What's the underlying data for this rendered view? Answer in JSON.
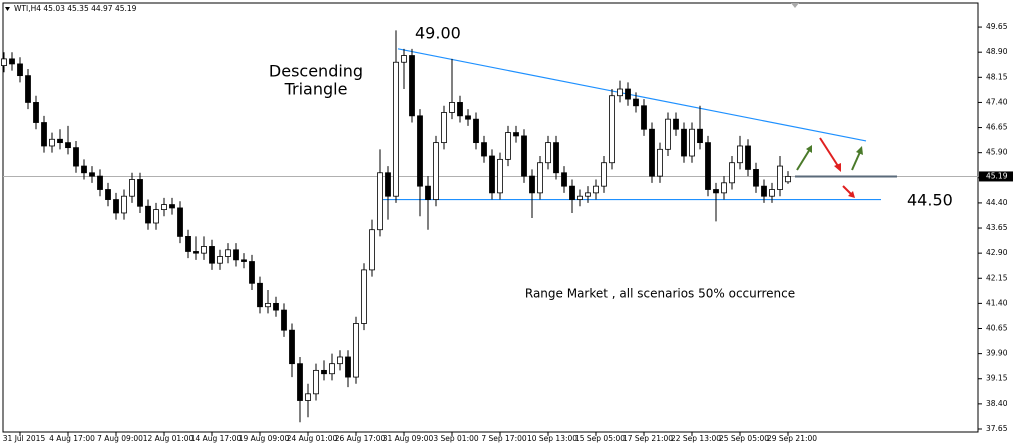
{
  "chart_data": {
    "type": "candlestick",
    "header": "WTI,H4 45.03 45.35 44.97 45.19",
    "annotations": {
      "pattern": [
        "Descending",
        "Triangle"
      ],
      "top_level": "49.00",
      "bottom_level": "44.50",
      "note": "Range Market , all scenarios 50% occurrence"
    },
    "trendlines": [
      {
        "color": "#1e90ff",
        "values": [
          49.0,
          46.25
        ]
      },
      {
        "color": "#1e90ff",
        "values": [
          44.5,
          44.5
        ]
      }
    ],
    "categories": [
      null,
      null,
      "31 Jul 2015",
      null,
      null,
      null,
      null,
      null,
      "4 Aug 17:00",
      null,
      null,
      null,
      null,
      null,
      "7 Aug 09:00",
      null,
      null,
      null,
      null,
      null,
      "12 Aug 01:00",
      null,
      null,
      null,
      null,
      null,
      "14 Aug 17:00",
      null,
      null,
      null,
      null,
      null,
      "19 Aug 09:00",
      null,
      null,
      null,
      null,
      null,
      "24 Aug 01:00",
      null,
      null,
      null,
      null,
      null,
      "26 Aug 17:00",
      null,
      null,
      null,
      null,
      null,
      "31 Aug 09:00",
      null,
      null,
      null,
      null,
      null,
      "3 Sep 01:00",
      null,
      null,
      null,
      null,
      null,
      "7 Sep 17:00",
      null,
      null,
      null,
      null,
      null,
      "10 Sep 13:00",
      null,
      null,
      null,
      null,
      null,
      "15 Sep 05:00",
      null,
      null,
      null,
      null,
      null,
      "17 Sep 21:00",
      null,
      null,
      null,
      null,
      null,
      "22 Sep 13:00",
      null,
      null,
      null,
      null,
      null,
      "25 Sep 05:00",
      null,
      null,
      null,
      null,
      null,
      "29 Sep 21:00"
    ],
    "open": [
      48.5,
      48.7,
      48.55,
      48.2,
      47.4,
      46.8,
      46.1,
      46.3,
      46.2,
      46.05,
      45.5,
      45.3,
      45.2,
      44.8,
      44.5,
      44.1,
      44.6,
      45.1,
      44.3,
      43.8,
      44.2,
      44.35,
      44.25,
      43.4,
      42.95,
      42.9,
      43.1,
      42.6,
      42.8,
      43.0,
      42.7,
      42.65,
      42.0,
      41.3,
      41.4,
      41.2,
      40.6,
      39.6,
      38.5,
      38.7,
      39.4,
      39.3,
      39.6,
      39.8,
      39.2,
      40.8,
      42.4,
      43.6,
      45.3,
      44.6,
      48.6,
      48.8,
      47.0,
      44.9,
      44.5,
      46.2,
      47.1,
      47.4,
      47.0,
      46.9,
      46.2,
      45.8,
      44.7,
      45.7,
      46.5,
      46.4,
      45.2,
      44.7,
      45.6,
      46.2,
      45.3,
      44.9,
      44.5,
      44.6,
      44.7,
      44.9,
      45.6,
      47.6,
      47.8,
      47.5,
      47.3,
      46.6,
      45.2,
      46.0,
      46.9,
      46.6,
      45.8,
      46.6,
      46.2,
      44.8,
      44.7,
      45.0,
      45.6,
      46.1,
      45.4,
      44.9,
      44.6,
      44.8,
      45.03
    ],
    "high": [
      48.9,
      48.9,
      48.75,
      48.4,
      47.6,
      47.0,
      46.5,
      46.6,
      46.7,
      46.25,
      45.7,
      45.5,
      45.4,
      45.0,
      44.7,
      44.8,
      45.3,
      45.3,
      44.5,
      44.4,
      44.55,
      44.55,
      44.45,
      43.6,
      43.4,
      43.4,
      43.3,
      43.0,
      43.2,
      43.2,
      42.9,
      42.85,
      42.2,
      41.8,
      41.6,
      41.4,
      40.8,
      39.8,
      39.0,
      39.6,
      39.7,
      39.9,
      40.0,
      40.0,
      41.0,
      42.6,
      43.9,
      46.0,
      45.5,
      49.55,
      49.0,
      49.0,
      47.2,
      45.2,
      46.4,
      47.3,
      48.7,
      47.6,
      47.2,
      47.1,
      46.4,
      46.0,
      45.9,
      46.7,
      46.7,
      46.6,
      45.4,
      45.8,
      46.4,
      46.4,
      45.5,
      45.1,
      44.8,
      44.9,
      45.1,
      45.8,
      47.8,
      48.05,
      48.0,
      47.7,
      47.5,
      46.8,
      46.2,
      47.1,
      47.1,
      46.8,
      46.8,
      47.3,
      46.4,
      45.0,
      45.2,
      45.8,
      46.4,
      46.3,
      45.6,
      45.1,
      45.0,
      45.8,
      45.35
    ],
    "low": [
      48.3,
      48.35,
      48.0,
      47.2,
      46.6,
      45.9,
      45.9,
      46.0,
      45.85,
      45.3,
      45.1,
      45.0,
      44.6,
      44.3,
      43.9,
      43.9,
      44.4,
      44.1,
      43.6,
      43.6,
      44.0,
      44.05,
      43.2,
      42.75,
      42.7,
      42.7,
      42.4,
      42.4,
      42.6,
      42.5,
      42.45,
      41.8,
      41.1,
      41.1,
      41.0,
      40.4,
      39.2,
      37.85,
      38.0,
      38.5,
      39.1,
      39.1,
      39.4,
      38.9,
      39.0,
      40.6,
      42.2,
      43.4,
      43.9,
      44.4,
      47.8,
      46.8,
      44.0,
      43.6,
      44.3,
      46.0,
      46.9,
      46.8,
      46.7,
      46.0,
      45.6,
      44.5,
      44.5,
      45.5,
      46.2,
      45.0,
      43.95,
      44.5,
      45.4,
      45.1,
      44.7,
      44.1,
      44.3,
      44.4,
      44.5,
      44.7,
      45.4,
      47.4,
      47.3,
      47.1,
      46.4,
      45.0,
      45.0,
      45.8,
      46.4,
      45.6,
      45.6,
      46.0,
      44.6,
      43.85,
      44.5,
      44.8,
      45.4,
      45.2,
      44.7,
      44.4,
      44.4,
      44.6,
      44.97
    ],
    "close": [
      48.7,
      48.55,
      48.2,
      47.4,
      46.8,
      46.1,
      46.3,
      46.2,
      46.05,
      45.5,
      45.3,
      45.2,
      44.8,
      44.5,
      44.1,
      44.6,
      45.1,
      44.3,
      43.8,
      44.2,
      44.35,
      44.25,
      43.4,
      42.95,
      42.9,
      43.1,
      42.6,
      42.8,
      43.0,
      42.7,
      42.65,
      42.0,
      41.3,
      41.4,
      41.2,
      40.6,
      39.6,
      38.5,
      38.7,
      39.4,
      39.3,
      39.6,
      39.8,
      39.2,
      40.8,
      42.4,
      43.6,
      45.3,
      44.6,
      48.6,
      48.8,
      47.0,
      44.9,
      44.5,
      46.2,
      47.1,
      47.4,
      47.0,
      46.9,
      46.2,
      45.8,
      44.7,
      45.7,
      46.5,
      46.4,
      45.2,
      44.7,
      45.6,
      46.2,
      45.3,
      44.9,
      44.5,
      44.6,
      44.7,
      44.9,
      45.6,
      47.6,
      47.8,
      47.5,
      47.3,
      46.6,
      45.2,
      46.0,
      46.9,
      46.6,
      45.8,
      46.6,
      46.2,
      44.8,
      44.7,
      45.0,
      45.6,
      46.1,
      45.4,
      44.9,
      44.6,
      44.8,
      45.5,
      45.19
    ],
    "ylim": [
      37.56,
      50.1
    ],
    "yticks": [
      49.65,
      {
        "value": 48.9,
        "label": "48.90"
      },
      48.15,
      {
        "value": 47.4,
        "label": "47.40"
      },
      46.65,
      {
        "value": 45.9,
        "label": "45.90"
      },
      45.15,
      {
        "value": 44.4,
        "label": "44.40"
      },
      43.65,
      {
        "value": 42.9,
        "label": "42.90"
      },
      42.15,
      {
        "value": 41.4,
        "label": "41.40"
      },
      40.65,
      {
        "value": 39.9,
        "label": "39.90"
      },
      39.15,
      {
        "value": 38.4,
        "label": "38.40"
      },
      37.65
    ],
    "grid": false,
    "up_color": "#ffffff",
    "down_color": "#000000"
  }
}
